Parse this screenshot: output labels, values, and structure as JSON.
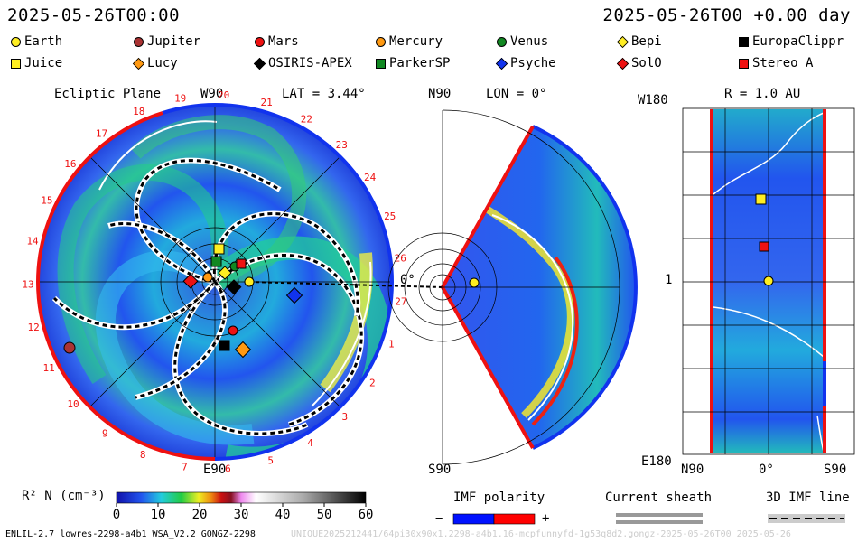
{
  "header": {
    "datetime_left": "2025-05-26T00:00",
    "datetime_right": "2025-05-26T00 +0.00 day"
  },
  "bodies": [
    {
      "name": "Earth",
      "color": "#ffee22",
      "shape": "circle"
    },
    {
      "name": "Jupiter",
      "color": "#aa3333",
      "shape": "circle"
    },
    {
      "name": "Mars",
      "color": "#ee1111",
      "shape": "circle"
    },
    {
      "name": "Mercury",
      "color": "#ff9911",
      "shape": "circle"
    },
    {
      "name": "Venus",
      "color": "#118822",
      "shape": "circle"
    },
    {
      "name": "Bepi",
      "color": "#ffee22",
      "shape": "diamond"
    },
    {
      "name": "EuropaClippr",
      "color": "#000000",
      "shape": "square"
    },
    {
      "name": "Juice",
      "color": "#ffee22",
      "shape": "square"
    },
    {
      "name": "Lucy",
      "color": "#ff9911",
      "shape": "diamond"
    },
    {
      "name": "OSIRIS-APEX",
      "color": "#000000",
      "shape": "diamond"
    },
    {
      "name": "ParkerSP",
      "color": "#118822",
      "shape": "square"
    },
    {
      "name": "Psyche",
      "color": "#1133ee",
      "shape": "diamond"
    },
    {
      "name": "SolO",
      "color": "#ee1111",
      "shape": "diamond"
    },
    {
      "name": "Stereo_A",
      "color": "#ee1111",
      "shape": "square"
    }
  ],
  "panels": {
    "ecliptic": {
      "title": "Ecliptic Plane",
      "top_label": "W90",
      "lat_label": "LAT = 3.44°",
      "bottom_label": "E90",
      "zero_label": "0°",
      "carrington_ticks": [
        "1",
        "2",
        "3",
        "4",
        "5",
        "6",
        "7",
        "8",
        "9",
        "10",
        "11",
        "12",
        "13",
        "14",
        "15",
        "16",
        "17",
        "18",
        "19",
        "20",
        "21",
        "22",
        "23",
        "24",
        "25",
        "26",
        "27"
      ]
    },
    "meridional": {
      "top_label": "N90",
      "lon_label": "LON = 0°",
      "bottom_label": "S90",
      "zero_label": "0°"
    },
    "radial": {
      "title": "R = 1.0 AU",
      "top_left": "W180",
      "mid_left": "1",
      "bottom_left": "E180",
      "axis_left": "N90",
      "axis_mid": "0°",
      "axis_right": "S90"
    }
  },
  "colorbar": {
    "label": "R² N (cm⁻³)",
    "ticks": [
      "0",
      "10",
      "20",
      "30",
      "40",
      "50",
      "60"
    ],
    "range": [
      0,
      60
    ]
  },
  "imf_polarity": {
    "label": "IMF polarity",
    "minus": "−",
    "plus": "+",
    "neg_color": "#0011ff",
    "pos_color": "#ff0000"
  },
  "current_sheath": {
    "label": "Current sheath"
  },
  "imf_line": {
    "label": "3D IMF line"
  },
  "footer": {
    "left": "ENLIL-2.7 lowres-2298-a4b1 WSA_V2.2 GONGZ-2298",
    "right": "UNIQUE2025212441/64pi30x90x1.2298-a4b1.16-mcpfunnyfd-1g53q8d2.gongz-2025-05-26T00  2025-05-26"
  }
}
